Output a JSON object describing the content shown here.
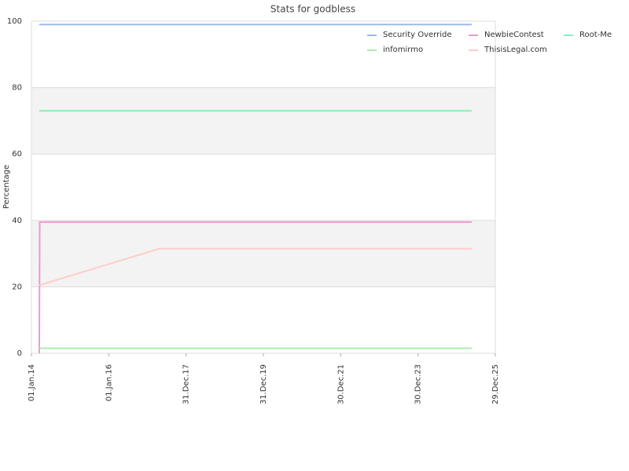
{
  "chart_data": {
    "type": "line",
    "title": "Stats for godbless",
    "ylabel": "Percentage",
    "xlim": [
      "2014-01-01",
      "2025-12-29"
    ],
    "xticks": [
      {
        "value": "2014-01-01",
        "label": "01.Jan.14"
      },
      {
        "value": "2016-01-01",
        "label": "01.Jan.16"
      },
      {
        "value": "2017-12-31",
        "label": "31.Dec.17"
      },
      {
        "value": "2019-12-31",
        "label": "31.Dec.19"
      },
      {
        "value": "2021-12-30",
        "label": "30.Dec.21"
      },
      {
        "value": "2023-12-30",
        "label": "30.Dec.23"
      },
      {
        "value": "2025-12-29",
        "label": "29.Dec.25"
      }
    ],
    "ylim": [
      0,
      100
    ],
    "yticks": [
      0,
      20,
      40,
      60,
      80,
      100
    ],
    "grid": true,
    "legend": "top-right",
    "series": [
      {
        "name": "Security Override",
        "color": "#99bbee",
        "x": [
          "2014-03-16",
          "2025-05-20"
        ],
        "values": [
          99,
          99
        ]
      },
      {
        "name": "NewbieContest",
        "color": "#ee99cc",
        "x": [
          "2014-03-16",
          "2014-03-20",
          "2025-05-20"
        ],
        "values": [
          0,
          39.5,
          39.5
        ]
      },
      {
        "name": "Root-Me",
        "color": "#88eebb",
        "x": [
          "2014-03-16",
          "2025-05-20"
        ],
        "values": [
          73,
          73
        ]
      },
      {
        "name": "infomirmo",
        "color": "#aaeeaa",
        "x": [
          "2014-03-16",
          "2025-05-20"
        ],
        "values": [
          1.5,
          1.5
        ]
      },
      {
        "name": "ThisisLegal.com",
        "color": "#ffcccc",
        "x": [
          "2014-03-16",
          "2017-04-25",
          "2025-05-20"
        ],
        "values": [
          20.5,
          31.5,
          31.5
        ]
      }
    ]
  }
}
